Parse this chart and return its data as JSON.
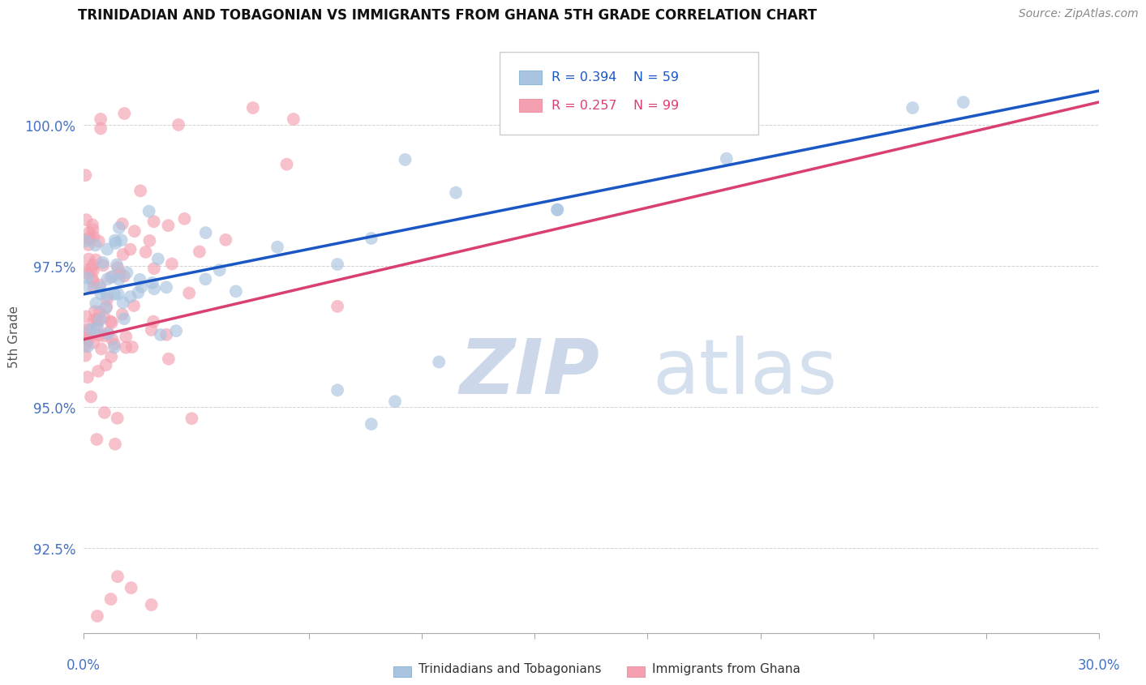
{
  "title": "TRINIDADIAN AND TOBAGONIAN VS IMMIGRANTS FROM GHANA 5TH GRADE CORRELATION CHART",
  "source": "Source: ZipAtlas.com",
  "ylabel": "5th Grade",
  "xlim": [
    0.0,
    30.0
  ],
  "ylim": [
    91.0,
    101.5
  ],
  "yticks": [
    92.5,
    95.0,
    97.5,
    100.0
  ],
  "ytick_labels": [
    "92.5%",
    "95.0%",
    "97.5%",
    "100.0%"
  ],
  "blue_color": "#a8c4e0",
  "pink_color": "#f4a0b0",
  "blue_line_color": "#1a56c4",
  "pink_line_color": "#d94070",
  "legend_label_blue": "Trinidadians and Tobagonians",
  "legend_label_pink": "Immigrants from Ghana",
  "watermark_zip": "ZIP",
  "watermark_atlas": "atlas",
  "background_color": "#ffffff",
  "grid_color": "#cccccc",
  "title_color": "#111111",
  "tick_label_color": "#4472c4",
  "blue_line_x": [
    0.0,
    30.0
  ],
  "blue_line_y": [
    97.0,
    100.6
  ],
  "pink_line_x": [
    0.0,
    30.0
  ],
  "pink_line_y": [
    96.2,
    100.4
  ]
}
